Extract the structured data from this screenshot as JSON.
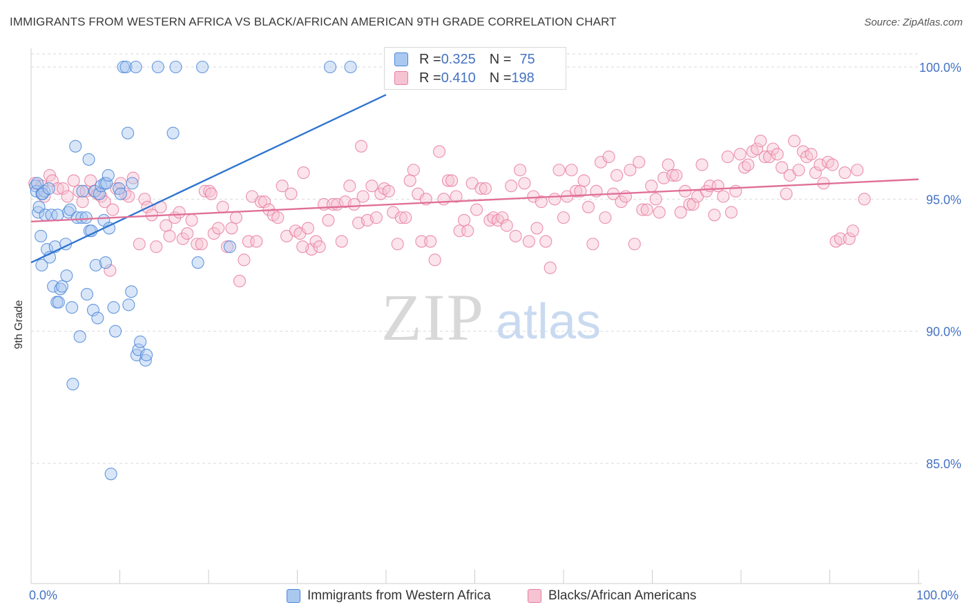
{
  "title": "IMMIGRANTS FROM WESTERN AFRICA VS BLACK/AFRICAN AMERICAN 9TH GRADE CORRELATION CHART",
  "source": "Source: ZipAtlas.com",
  "watermark": {
    "zip": "ZIP",
    "atlas": "atlas"
  },
  "colors": {
    "blue": "#4a86d8",
    "blue_fill": "#aac8f0",
    "blue_line": "#2f74d0",
    "pink": "#e87ca0",
    "pink_fill": "#f6c3d3",
    "pink_line": "#e07098",
    "axis_label": "#4472c4",
    "grid": "#d9d9d9"
  },
  "legend": {
    "rows": [
      {
        "r_label": "R = ",
        "r_value": "0.325",
        "n_label": "N = ",
        "n_value": "75",
        "color": "blue"
      },
      {
        "r_label": "R = ",
        "r_value": "0.410",
        "n_label": "N = ",
        "n_value": "198",
        "color": "pink"
      }
    ]
  },
  "chart_data": {
    "type": "scatter",
    "title": "IMMIGRANTS FROM WESTERN AFRICA VS BLACK/AFRICAN AMERICAN 9TH GRADE CORRELATION CHART",
    "xlabel": "",
    "ylabel": "9th Grade",
    "xlim": [
      0,
      100
    ],
    "ylim": [
      80.5,
      101.0
    ],
    "x_tick_labels": [
      "0.0%",
      "100.0%"
    ],
    "y_ticks": [
      85,
      90,
      95,
      100
    ],
    "y_tick_labels": [
      "85.0%",
      "90.0%",
      "95.0%",
      "100.0%"
    ],
    "grid": true,
    "legend_position": "bottom",
    "series": [
      {
        "name": "Immigrants from Western Africa",
        "color": "blue",
        "trend": {
          "x": [
            0,
            40
          ],
          "y": [
            92.6,
            98.95
          ]
        },
        "points": [
          [
            0.5,
            95.5
          ],
          [
            0.6,
            95.3
          ],
          [
            0.8,
            94.5
          ],
          [
            0.9,
            94.7
          ],
          [
            1.2,
            95.2
          ],
          [
            1.5,
            95.3
          ],
          [
            1.6,
            94.4
          ],
          [
            1.1,
            93.6
          ],
          [
            1.2,
            92.5
          ],
          [
            1.8,
            93.1
          ],
          [
            2.1,
            92.8
          ],
          [
            2.3,
            94.4
          ],
          [
            2.5,
            91.7
          ],
          [
            2.7,
            93.2
          ],
          [
            2.9,
            91.1
          ],
          [
            3.1,
            91.1
          ],
          [
            3.3,
            91.6
          ],
          [
            3.5,
            91.7
          ],
          [
            3.9,
            93.3
          ],
          [
            4.0,
            92.1
          ],
          [
            4.2,
            94.5
          ],
          [
            4.4,
            94.6
          ],
          [
            4.6,
            90.9
          ],
          [
            4.7,
            88.0
          ],
          [
            5.0,
            97.0
          ],
          [
            5.2,
            94.3
          ],
          [
            5.5,
            89.8
          ],
          [
            5.7,
            94.3
          ],
          [
            5.8,
            95.3
          ],
          [
            6.2,
            94.3
          ],
          [
            6.3,
            91.4
          ],
          [
            6.5,
            96.5
          ],
          [
            6.6,
            93.8
          ],
          [
            6.8,
            93.8
          ],
          [
            7.0,
            90.8
          ],
          [
            7.2,
            95.3
          ],
          [
            7.3,
            92.5
          ],
          [
            7.5,
            90.5
          ],
          [
            7.7,
            95.2
          ],
          [
            7.9,
            95.5
          ],
          [
            8.2,
            94.2
          ],
          [
            8.3,
            95.6
          ],
          [
            8.4,
            92.6
          ],
          [
            8.5,
            95.6
          ],
          [
            8.7,
            95.9
          ],
          [
            8.8,
            93.9
          ],
          [
            9.0,
            84.6
          ],
          [
            9.3,
            90.9
          ],
          [
            9.5,
            90.0
          ],
          [
            9.9,
            95.4
          ],
          [
            10.1,
            95.2
          ],
          [
            10.4,
            100.0
          ],
          [
            10.7,
            100.0
          ],
          [
            10.9,
            97.5
          ],
          [
            11.0,
            91.0
          ],
          [
            11.3,
            91.5
          ],
          [
            11.4,
            95.6
          ],
          [
            11.8,
            100.0
          ],
          [
            11.9,
            89.1
          ],
          [
            12.1,
            89.3
          ],
          [
            12.3,
            89.6
          ],
          [
            12.9,
            88.9
          ],
          [
            13.0,
            89.1
          ],
          [
            14.3,
            100.0
          ],
          [
            16.3,
            100.0
          ],
          [
            16.0,
            97.5
          ],
          [
            18.8,
            92.6
          ],
          [
            19.3,
            100.0
          ],
          [
            22.4,
            93.2
          ],
          [
            33.7,
            100.0
          ],
          [
            36.0,
            100.0
          ],
          [
            0.7,
            95.6
          ],
          [
            1.3,
            95.2
          ],
          [
            2.0,
            95.4
          ],
          [
            3.0,
            94.4
          ]
        ]
      },
      {
        "name": "Blacks/African Americans",
        "color": "pink",
        "trend": {
          "x": [
            0,
            100
          ],
          "y": [
            94.15,
            95.75
          ]
        },
        "points": [
          [
            0.4,
            95.6
          ],
          [
            1.2,
            95.5
          ],
          [
            1.5,
            95.1
          ],
          [
            2.1,
            95.9
          ],
          [
            2.4,
            95.7
          ],
          [
            3.0,
            95.4
          ],
          [
            3.6,
            95.4
          ],
          [
            4.1,
            95.1
          ],
          [
            4.8,
            95.7
          ],
          [
            5.4,
            95.3
          ],
          [
            5.8,
            94.9
          ],
          [
            6.2,
            95.3
          ],
          [
            6.7,
            95.7
          ],
          [
            7.1,
            95.3
          ],
          [
            7.5,
            95.2
          ],
          [
            7.9,
            95.1
          ],
          [
            8.3,
            94.9
          ],
          [
            8.9,
            92.3
          ],
          [
            9.2,
            94.6
          ],
          [
            9.6,
            95.4
          ],
          [
            10.1,
            95.6
          ],
          [
            10.6,
            95.2
          ],
          [
            11.0,
            95.1
          ],
          [
            11.5,
            95.8
          ],
          [
            12.2,
            93.3
          ],
          [
            12.8,
            95.0
          ],
          [
            13.1,
            94.7
          ],
          [
            13.6,
            94.4
          ],
          [
            14.1,
            93.2
          ],
          [
            14.6,
            94.7
          ],
          [
            15.2,
            94.0
          ],
          [
            15.6,
            93.6
          ],
          [
            16.2,
            94.3
          ],
          [
            16.7,
            94.5
          ],
          [
            17.1,
            93.5
          ],
          [
            17.6,
            93.7
          ],
          [
            18.1,
            94.2
          ],
          [
            18.7,
            93.3
          ],
          [
            19.2,
            93.3
          ],
          [
            19.6,
            95.3
          ],
          [
            20.1,
            95.3
          ],
          [
            20.6,
            93.7
          ],
          [
            21.1,
            93.9
          ],
          [
            21.6,
            94.7
          ],
          [
            22.1,
            93.2
          ],
          [
            22.6,
            93.9
          ],
          [
            23.1,
            94.3
          ],
          [
            23.5,
            91.9
          ],
          [
            24.0,
            92.7
          ],
          [
            24.5,
            93.4
          ],
          [
            24.9,
            95.1
          ],
          [
            25.4,
            93.4
          ],
          [
            25.9,
            94.9
          ],
          [
            26.3,
            94.9
          ],
          [
            26.8,
            94.6
          ],
          [
            27.3,
            94.4
          ],
          [
            27.8,
            94.3
          ],
          [
            28.3,
            95.5
          ],
          [
            28.8,
            93.6
          ],
          [
            29.3,
            95.2
          ],
          [
            29.8,
            93.8
          ],
          [
            30.3,
            93.7
          ],
          [
            30.7,
            96.0
          ],
          [
            31.2,
            93.9
          ],
          [
            31.6,
            93.1
          ],
          [
            32.1,
            93.4
          ],
          [
            32.5,
            93.2
          ],
          [
            33.0,
            94.8
          ],
          [
            33.5,
            94.2
          ],
          [
            34.0,
            94.8
          ],
          [
            34.5,
            94.8
          ],
          [
            35.0,
            93.4
          ],
          [
            35.4,
            94.9
          ],
          [
            35.9,
            95.5
          ],
          [
            36.4,
            94.8
          ],
          [
            36.9,
            94.1
          ],
          [
            37.4,
            95.1
          ],
          [
            37.9,
            94.2
          ],
          [
            38.4,
            95.5
          ],
          [
            38.9,
            94.3
          ],
          [
            39.4,
            95.2
          ],
          [
            39.8,
            95.4
          ],
          [
            40.3,
            95.3
          ],
          [
            40.8,
            94.5
          ],
          [
            41.3,
            93.3
          ],
          [
            41.7,
            94.3
          ],
          [
            42.2,
            94.3
          ],
          [
            42.7,
            95.7
          ],
          [
            43.1,
            96.1
          ],
          [
            43.6,
            95.2
          ],
          [
            44.0,
            93.4
          ],
          [
            44.5,
            95.0
          ],
          [
            45.0,
            93.4
          ],
          [
            45.5,
            92.7
          ],
          [
            46.0,
            96.8
          ],
          [
            46.5,
            95.0
          ],
          [
            47.0,
            95.7
          ],
          [
            47.4,
            95.7
          ],
          [
            47.9,
            95.1
          ],
          [
            48.3,
            93.8
          ],
          [
            48.8,
            94.2
          ],
          [
            49.2,
            93.8
          ],
          [
            49.7,
            95.6
          ],
          [
            50.2,
            94.6
          ],
          [
            50.7,
            95.4
          ],
          [
            51.2,
            95.4
          ],
          [
            51.7,
            94.2
          ],
          [
            52.1,
            94.3
          ],
          [
            52.6,
            94.2
          ],
          [
            53.1,
            94.3
          ],
          [
            53.6,
            94.0
          ],
          [
            54.1,
            95.5
          ],
          [
            54.6,
            93.6
          ],
          [
            55.1,
            96.1
          ],
          [
            55.6,
            95.6
          ],
          [
            56.1,
            93.4
          ],
          [
            56.6,
            95.1
          ],
          [
            57.0,
            93.9
          ],
          [
            57.5,
            94.9
          ],
          [
            58.0,
            93.4
          ],
          [
            58.5,
            92.4
          ],
          [
            59.0,
            95.0
          ],
          [
            59.5,
            96.1
          ],
          [
            60.0,
            94.3
          ],
          [
            60.4,
            95.1
          ],
          [
            60.9,
            96.1
          ],
          [
            61.4,
            95.3
          ],
          [
            61.9,
            95.3
          ],
          [
            62.3,
            95.7
          ],
          [
            62.8,
            94.7
          ],
          [
            63.3,
            93.3
          ],
          [
            63.7,
            95.3
          ],
          [
            64.2,
            96.4
          ],
          [
            64.7,
            94.3
          ],
          [
            65.1,
            96.6
          ],
          [
            65.6,
            95.2
          ],
          [
            66.0,
            95.9
          ],
          [
            66.5,
            94.9
          ],
          [
            67.0,
            95.1
          ],
          [
            67.5,
            96.1
          ],
          [
            68.0,
            93.3
          ],
          [
            68.5,
            96.4
          ],
          [
            68.9,
            94.6
          ],
          [
            69.4,
            94.6
          ],
          [
            69.9,
            95.5
          ],
          [
            70.4,
            95.0
          ],
          [
            70.8,
            94.5
          ],
          [
            71.3,
            95.8
          ],
          [
            71.8,
            96.3
          ],
          [
            72.3,
            95.9
          ],
          [
            72.7,
            95.9
          ],
          [
            73.2,
            94.5
          ],
          [
            73.7,
            95.3
          ],
          [
            74.2,
            94.8
          ],
          [
            74.6,
            94.8
          ],
          [
            75.1,
            95.1
          ],
          [
            75.6,
            96.3
          ],
          [
            76.1,
            95.3
          ],
          [
            76.5,
            95.5
          ],
          [
            77.0,
            94.4
          ],
          [
            77.4,
            95.5
          ],
          [
            78.0,
            95.1
          ],
          [
            78.5,
            96.6
          ],
          [
            78.9,
            94.5
          ],
          [
            79.4,
            95.3
          ],
          [
            79.9,
            96.7
          ],
          [
            80.4,
            96.2
          ],
          [
            80.8,
            96.3
          ],
          [
            81.3,
            96.8
          ],
          [
            81.8,
            96.9
          ],
          [
            82.2,
            97.2
          ],
          [
            82.7,
            96.6
          ],
          [
            83.2,
            96.6
          ],
          [
            83.6,
            96.9
          ],
          [
            84.1,
            96.7
          ],
          [
            84.6,
            96.2
          ],
          [
            85.1,
            95.2
          ],
          [
            85.5,
            95.9
          ],
          [
            86.0,
            97.2
          ],
          [
            86.5,
            96.1
          ],
          [
            87.0,
            96.8
          ],
          [
            87.4,
            96.6
          ],
          [
            87.9,
            96.7
          ],
          [
            88.4,
            96.0
          ],
          [
            88.9,
            96.3
          ],
          [
            89.3,
            95.6
          ],
          [
            89.8,
            96.4
          ],
          [
            90.3,
            96.3
          ],
          [
            90.7,
            93.4
          ],
          [
            91.2,
            93.5
          ],
          [
            91.7,
            96.0
          ],
          [
            92.2,
            93.5
          ],
          [
            92.6,
            93.8
          ],
          [
            93.1,
            96.1
          ],
          [
            93.9,
            95.0
          ],
          [
            37.2,
            97.0
          ],
          [
            30.6,
            93.2
          ],
          [
            20.3,
            95.2
          ]
        ]
      }
    ]
  },
  "x_axis": {
    "left_label": "0.0%",
    "right_label": "100.0%"
  }
}
